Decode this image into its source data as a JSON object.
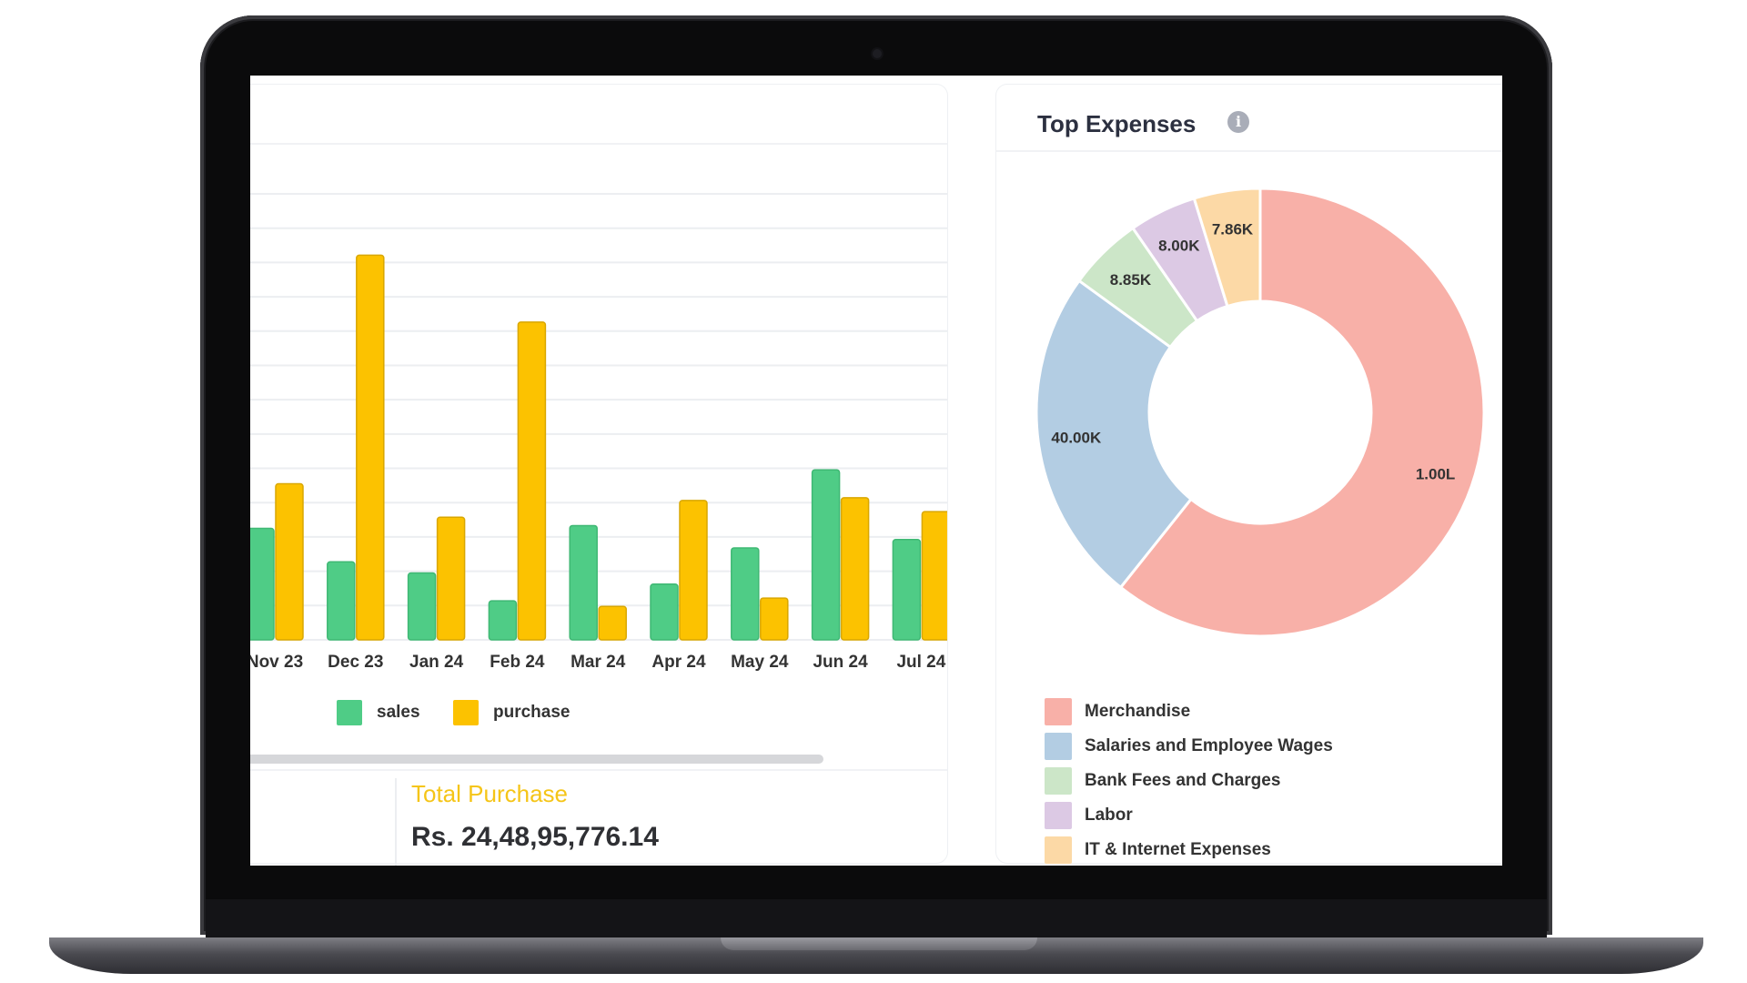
{
  "chart_data": [
    {
      "type": "bar",
      "title": "",
      "categories": [
        "Nov 23",
        "Dec 23",
        "Jan 24",
        "Feb 24",
        "Mar 24",
        "Apr 24",
        "May 24",
        "Jun 24",
        "Jul 24"
      ],
      "series": [
        {
          "name": "sales",
          "color": "#4fcc86",
          "values": [
            40,
            28,
            24,
            14,
            41,
            20,
            33,
            61,
            36
          ]
        },
        {
          "name": "purchase",
          "color": "#fcc200",
          "values": [
            56,
            138,
            44,
            114,
            12,
            50,
            15,
            51,
            46
          ]
        }
      ],
      "ylim": [
        0,
        160
      ],
      "grid": true,
      "legend_position": "bottom"
    },
    {
      "type": "pie",
      "title": "Top Expenses",
      "donut": true,
      "slices": [
        {
          "label": "Merchandise",
          "display": "1.00L",
          "value": 100000,
          "color": "#f8b0a8"
        },
        {
          "label": "Salaries and Employee Wages",
          "display": "40.00K",
          "value": 40000,
          "color": "#b3cde3"
        },
        {
          "label": "Bank Fees and Charges",
          "display": "8.85K",
          "value": 8850,
          "color": "#cce6c8"
        },
        {
          "label": "Labor",
          "display": "8.00K",
          "value": 8000,
          "color": "#dcc9e4"
        },
        {
          "label": "IT & Internet Expenses",
          "display": "7.86K",
          "value": 7860,
          "color": "#fcd9a6"
        }
      ],
      "legend_position": "bottom"
    }
  ],
  "summary": {
    "total_purchase_label": "Total Purchase",
    "total_purchase_value": "Rs. 24,48,95,776.14"
  },
  "colors": {
    "sales": "#4fcc86",
    "purchase": "#fcc200",
    "title_accent": "#f5c518"
  }
}
